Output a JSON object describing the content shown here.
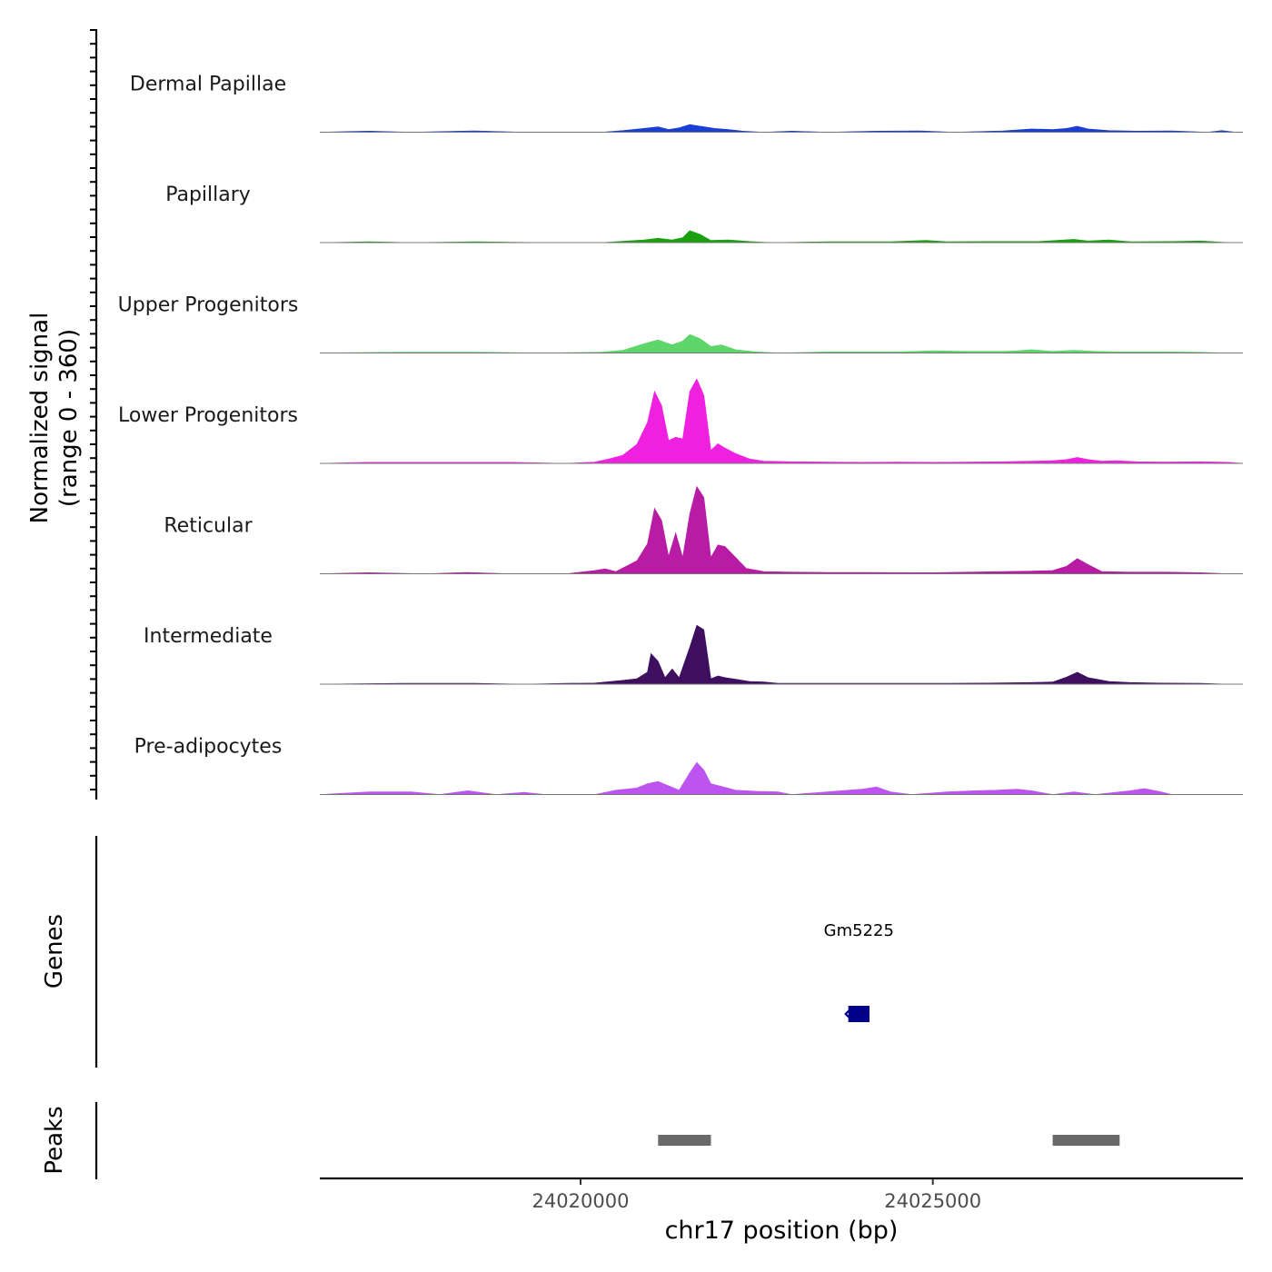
{
  "chart_data": {
    "type": "area",
    "title": "",
    "signal_axis": {
      "label_line1": "Normalized signal",
      "label_line2": "(range 0 - 360)",
      "ylim": [
        0,
        360
      ]
    },
    "genes_axis_label": "Genes",
    "peaks_axis_label": "Peaks",
    "xlabel": "chr17 position (bp)",
    "xlim": [
      24016300,
      24029400
    ],
    "xticks": [
      {
        "value": 24020000,
        "label": "24020000"
      },
      {
        "value": 24025000,
        "label": "24025000"
      }
    ],
    "tracks": [
      {
        "name": "Dermal Papillae",
        "color": "#1a3fd6",
        "points": [
          [
            24016300,
            0
          ],
          [
            24017000,
            4
          ],
          [
            24017600,
            0
          ],
          [
            24018500,
            5
          ],
          [
            24019200,
            0
          ],
          [
            24019900,
            0
          ],
          [
            24020300,
            0
          ],
          [
            24020600,
            6
          ],
          [
            24020900,
            14
          ],
          [
            24021100,
            20
          ],
          [
            24021250,
            10
          ],
          [
            24021400,
            16
          ],
          [
            24021550,
            28
          ],
          [
            24021700,
            22
          ],
          [
            24021900,
            14
          ],
          [
            24022100,
            10
          ],
          [
            24022300,
            4
          ],
          [
            24022600,
            0
          ],
          [
            24023000,
            4
          ],
          [
            24023500,
            0
          ],
          [
            24024200,
            4
          ],
          [
            24024800,
            5
          ],
          [
            24025300,
            0
          ],
          [
            24026000,
            5
          ],
          [
            24026400,
            12
          ],
          [
            24026700,
            10
          ],
          [
            24026900,
            14
          ],
          [
            24027050,
            22
          ],
          [
            24027200,
            12
          ],
          [
            24027500,
            6
          ],
          [
            24027900,
            4
          ],
          [
            24028400,
            5
          ],
          [
            24028900,
            0
          ],
          [
            24029100,
            6
          ],
          [
            24029300,
            0
          ],
          [
            24029400,
            0
          ]
        ]
      },
      {
        "name": "Papillary",
        "color": "#1aa00f",
        "points": [
          [
            24016300,
            0
          ],
          [
            24017000,
            3
          ],
          [
            24017600,
            0
          ],
          [
            24018500,
            3
          ],
          [
            24019500,
            0
          ],
          [
            24020300,
            0
          ],
          [
            24020600,
            5
          ],
          [
            24020900,
            10
          ],
          [
            24021100,
            16
          ],
          [
            24021300,
            10
          ],
          [
            24021450,
            18
          ],
          [
            24021550,
            44
          ],
          [
            24021700,
            30
          ],
          [
            24021850,
            8
          ],
          [
            24022100,
            10
          ],
          [
            24022400,
            4
          ],
          [
            24022700,
            0
          ],
          [
            24023500,
            3
          ],
          [
            24024400,
            3
          ],
          [
            24024900,
            8
          ],
          [
            24025200,
            3
          ],
          [
            24025800,
            4
          ],
          [
            24026500,
            4
          ],
          [
            24027000,
            12
          ],
          [
            24027200,
            6
          ],
          [
            24027500,
            10
          ],
          [
            24027800,
            3
          ],
          [
            24028400,
            4
          ],
          [
            24028800,
            6
          ],
          [
            24029200,
            0
          ],
          [
            24029400,
            0
          ]
        ]
      },
      {
        "name": "Upper Progenitors",
        "color": "#5ed66b",
        "points": [
          [
            24016300,
            0
          ],
          [
            24017500,
            3
          ],
          [
            24018500,
            3
          ],
          [
            24019500,
            0
          ],
          [
            24020300,
            3
          ],
          [
            24020600,
            10
          ],
          [
            24020900,
            34
          ],
          [
            24021100,
            48
          ],
          [
            24021300,
            30
          ],
          [
            24021450,
            44
          ],
          [
            24021550,
            68
          ],
          [
            24021700,
            52
          ],
          [
            24021850,
            24
          ],
          [
            24022000,
            30
          ],
          [
            24022200,
            12
          ],
          [
            24022500,
            4
          ],
          [
            24022800,
            0
          ],
          [
            24023500,
            4
          ],
          [
            24024500,
            4
          ],
          [
            24025000,
            8
          ],
          [
            24025500,
            6
          ],
          [
            24026000,
            6
          ],
          [
            24026200,
            8
          ],
          [
            24026400,
            12
          ],
          [
            24026700,
            6
          ],
          [
            24027000,
            10
          ],
          [
            24027300,
            6
          ],
          [
            24027700,
            4
          ],
          [
            24028300,
            4
          ],
          [
            24028700,
            3
          ],
          [
            24029200,
            0
          ],
          [
            24029400,
            0
          ]
        ]
      },
      {
        "name": "Lower Progenitors",
        "color": "#f020e0",
        "points": [
          [
            24016300,
            0
          ],
          [
            24017000,
            4
          ],
          [
            24018000,
            4
          ],
          [
            24019000,
            4
          ],
          [
            24019800,
            0
          ],
          [
            24020200,
            5
          ],
          [
            24020400,
            16
          ],
          [
            24020600,
            30
          ],
          [
            24020800,
            70
          ],
          [
            24020950,
            150
          ],
          [
            24021050,
            264
          ],
          [
            24021150,
            212
          ],
          [
            24021250,
            84
          ],
          [
            24021350,
            96
          ],
          [
            24021450,
            90
          ],
          [
            24021550,
            264
          ],
          [
            24021650,
            310
          ],
          [
            24021750,
            250
          ],
          [
            24021850,
            48
          ],
          [
            24021950,
            72
          ],
          [
            24022050,
            56
          ],
          [
            24022200,
            36
          ],
          [
            24022400,
            16
          ],
          [
            24022600,
            8
          ],
          [
            24023000,
            6
          ],
          [
            24023500,
            5
          ],
          [
            24024000,
            4
          ],
          [
            24024500,
            5
          ],
          [
            24025000,
            4
          ],
          [
            24025500,
            5
          ],
          [
            24026000,
            6
          ],
          [
            24026400,
            8
          ],
          [
            24026700,
            10
          ],
          [
            24026900,
            14
          ],
          [
            24027050,
            22
          ],
          [
            24027200,
            14
          ],
          [
            24027400,
            8
          ],
          [
            24027600,
            10
          ],
          [
            24027900,
            6
          ],
          [
            24028300,
            5
          ],
          [
            24028800,
            6
          ],
          [
            24029200,
            4
          ],
          [
            24029400,
            0
          ]
        ]
      },
      {
        "name": "Reticular",
        "color": "#b81ca4",
        "points": [
          [
            24016300,
            0
          ],
          [
            24017000,
            4
          ],
          [
            24017800,
            0
          ],
          [
            24018400,
            5
          ],
          [
            24019000,
            0
          ],
          [
            24019800,
            0
          ],
          [
            24020200,
            12
          ],
          [
            24020350,
            18
          ],
          [
            24020500,
            8
          ],
          [
            24020800,
            48
          ],
          [
            24020950,
            110
          ],
          [
            24021050,
            240
          ],
          [
            24021150,
            196
          ],
          [
            24021250,
            64
          ],
          [
            24021350,
            150
          ],
          [
            24021450,
            60
          ],
          [
            24021550,
            220
          ],
          [
            24021650,
            320
          ],
          [
            24021750,
            280
          ],
          [
            24021850,
            60
          ],
          [
            24021950,
            106
          ],
          [
            24022050,
            100
          ],
          [
            24022200,
            60
          ],
          [
            24022350,
            20
          ],
          [
            24022600,
            8
          ],
          [
            24023000,
            6
          ],
          [
            24023500,
            5
          ],
          [
            24024000,
            5
          ],
          [
            24025000,
            4
          ],
          [
            24025500,
            6
          ],
          [
            24026000,
            8
          ],
          [
            24026400,
            10
          ],
          [
            24026700,
            12
          ],
          [
            24026900,
            28
          ],
          [
            24027050,
            56
          ],
          [
            24027200,
            34
          ],
          [
            24027400,
            8
          ],
          [
            24027800,
            6
          ],
          [
            24028300,
            6
          ],
          [
            24028800,
            4
          ],
          [
            24029200,
            0
          ],
          [
            24029400,
            0
          ]
        ]
      },
      {
        "name": "Intermediate",
        "color": "#3d0f5e",
        "points": [
          [
            24016300,
            0
          ],
          [
            24017500,
            3
          ],
          [
            24018500,
            3
          ],
          [
            24019200,
            0
          ],
          [
            24019800,
            3
          ],
          [
            24020200,
            4
          ],
          [
            24020600,
            14
          ],
          [
            24020800,
            20
          ],
          [
            24020950,
            44
          ],
          [
            24021000,
            112
          ],
          [
            24021100,
            84
          ],
          [
            24021200,
            24
          ],
          [
            24021300,
            56
          ],
          [
            24021400,
            24
          ],
          [
            24021550,
            136
          ],
          [
            24021650,
            216
          ],
          [
            24021750,
            200
          ],
          [
            24021850,
            20
          ],
          [
            24021950,
            30
          ],
          [
            24022050,
            24
          ],
          [
            24022200,
            18
          ],
          [
            24022400,
            10
          ],
          [
            24022600,
            8
          ],
          [
            24022800,
            3
          ],
          [
            24023500,
            3
          ],
          [
            24024500,
            3
          ],
          [
            24025200,
            3
          ],
          [
            24025800,
            4
          ],
          [
            24026400,
            6
          ],
          [
            24026700,
            8
          ],
          [
            24026900,
            26
          ],
          [
            24027050,
            44
          ],
          [
            24027200,
            24
          ],
          [
            24027500,
            10
          ],
          [
            24027800,
            6
          ],
          [
            24028200,
            4
          ],
          [
            24028800,
            3
          ],
          [
            24029200,
            0
          ],
          [
            24029400,
            0
          ]
        ]
      },
      {
        "name": "Pre-adipocytes",
        "color": "#bd54f0",
        "points": [
          [
            24016300,
            0
          ],
          [
            24017000,
            10
          ],
          [
            24017600,
            10
          ],
          [
            24018000,
            0
          ],
          [
            24018400,
            14
          ],
          [
            24018800,
            0
          ],
          [
            24019200,
            8
          ],
          [
            24019500,
            0
          ],
          [
            24020200,
            0
          ],
          [
            24020500,
            16
          ],
          [
            24020800,
            24
          ],
          [
            24020950,
            40
          ],
          [
            24021100,
            48
          ],
          [
            24021250,
            32
          ],
          [
            24021400,
            16
          ],
          [
            24021550,
            80
          ],
          [
            24021650,
            118
          ],
          [
            24021750,
            90
          ],
          [
            24021850,
            40
          ],
          [
            24022000,
            30
          ],
          [
            24022200,
            16
          ],
          [
            24022500,
            12
          ],
          [
            24022800,
            10
          ],
          [
            24023000,
            0
          ],
          [
            24023500,
            10
          ],
          [
            24023800,
            16
          ],
          [
            24024000,
            20
          ],
          [
            24024200,
            28
          ],
          [
            24024400,
            10
          ],
          [
            24024700,
            0
          ],
          [
            24025200,
            10
          ],
          [
            24025600,
            14
          ],
          [
            24025900,
            16
          ],
          [
            24026200,
            20
          ],
          [
            24026400,
            14
          ],
          [
            24026700,
            0
          ],
          [
            24027000,
            10
          ],
          [
            24027300,
            0
          ],
          [
            24027800,
            14
          ],
          [
            24028000,
            22
          ],
          [
            24028200,
            12
          ],
          [
            24028400,
            0
          ],
          [
            24029400,
            0
          ]
        ]
      }
    ],
    "genes": [
      {
        "name": "Gm5225",
        "start": 24023800,
        "end": 24024100,
        "strand": "-",
        "color": "#00008b"
      }
    ],
    "peaks": [
      {
        "start": 24021100,
        "end": 24021850,
        "color": "#696969"
      },
      {
        "start": 24026700,
        "end": 24027650,
        "color": "#696969"
      }
    ]
  }
}
